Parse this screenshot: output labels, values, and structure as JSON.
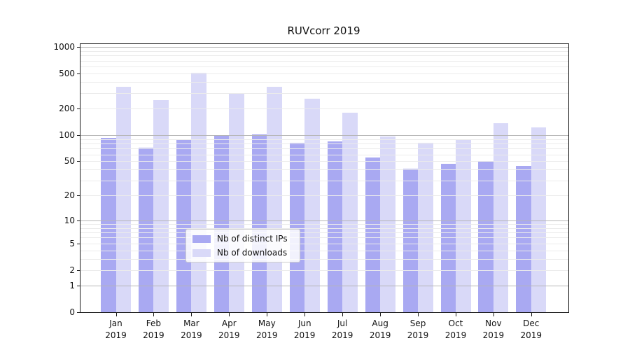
{
  "chart_data": {
    "type": "bar",
    "title": "RUVcorr 2019",
    "y_scale": "log1p",
    "grid": true,
    "legend_position": "lower center",
    "categories": [
      "Jan 2019",
      "Feb 2019",
      "Mar 2019",
      "Apr 2019",
      "May 2019",
      "Jun 2019",
      "Jul 2019",
      "Aug 2019",
      "Sep 2019",
      "Oct 2019",
      "Nov 2019",
      "Dec 2019"
    ],
    "series": [
      {
        "name": "Nb of distinct IPs",
        "color": "#a9a9f2",
        "values": [
          93,
          71,
          87,
          100,
          101,
          81,
          84,
          55,
          41,
          47,
          50,
          44
        ]
      },
      {
        "name": "Nb of downloads",
        "color": "#d9d9f8",
        "values": [
          355,
          250,
          505,
          295,
          353,
          258,
          180,
          96,
          81,
          87,
          137,
          122
        ]
      }
    ],
    "y_ticks": [
      0,
      1,
      2,
      5,
      10,
      20,
      50,
      100,
      200,
      500,
      1000
    ],
    "ylim": [
      0,
      1080
    ],
    "xlabel": "",
    "ylabel": ""
  },
  "colors": {
    "major_grid": "#b5b5b5",
    "minor_grid": "#ebebeb",
    "axis": "#1a1a1a",
    "background": "#ffffff"
  }
}
